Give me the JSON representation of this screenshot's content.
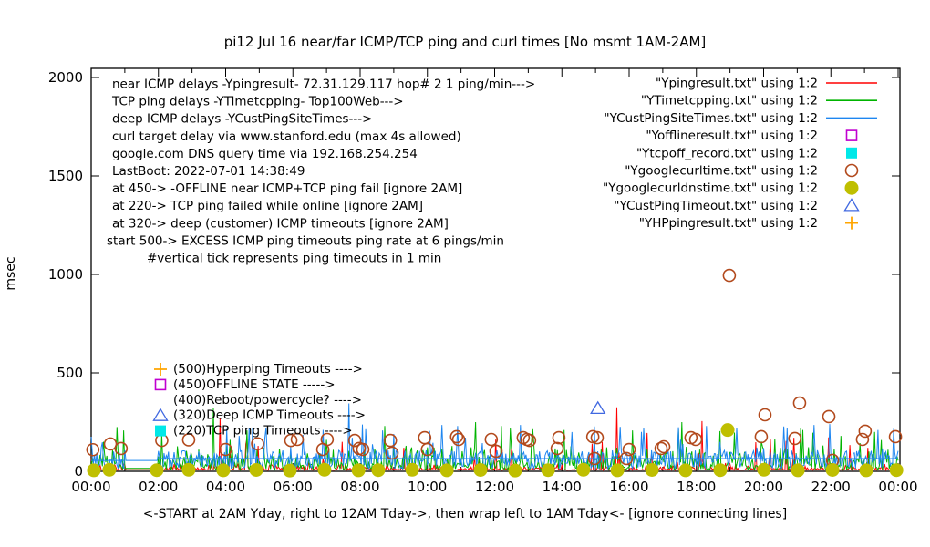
{
  "chart_data": {
    "type": "line",
    "title": "pi12 Jul 16  near/far ICMP/TCP ping and curl times [No msmt 1AM-2AM]",
    "xlabel": "<-START at 2AM Yday, right to 12AM Tday->, then wrap left to 1AM Tday<- [ignore connecting lines]",
    "ylabel": "msec",
    "ylim": [
      0,
      2000
    ],
    "y_ticks": [
      0,
      500,
      1000,
      1500,
      2000
    ],
    "x_tick_labels": [
      "00:00",
      "02:00",
      "04:00",
      "06:00",
      "08:00",
      "10:00",
      "12:00",
      "14:00",
      "16:00",
      "18:00",
      "20:00",
      "22:00",
      "00:00"
    ],
    "x_minor_every_hours": 1,
    "no_measurement_hours": [
      1,
      2
    ],
    "info_lines": [
      "near ICMP delays -Ypingresult- 72.31.129.117 hop# 2 1 ping/min--->",
      "TCP ping delays -YTimetcpping- Top100Web--->",
      "deep ICMP delays -YCustPingSiteTimes--->",
      "curl target delay via www.stanford.edu (max 4s allowed)",
      "google.com DNS query time via 192.168.254.254",
      "LastBoot: 2022-07-01 14:38:49",
      "at 450-> -OFFLINE near ICMP+TCP ping fail [ignore 2AM]",
      "at 220-> TCP ping failed while online [ignore 2AM]",
      "at 320-> deep (customer) ICMP timeouts [ignore 2AM]",
      "start 500-> EXCESS ICMP ping timeouts ping rate at 6 pings/min",
      "#vertical tick represents ping timeouts in 1 min"
    ],
    "info_indent": [
      0,
      0,
      0,
      0,
      0,
      0,
      0,
      0,
      0,
      -6,
      38
    ],
    "legend": [
      {
        "label": "\"Ypingresult.txt\" using 1:2",
        "style": "line",
        "color": "#ff0000"
      },
      {
        "label": "\"YTimetcpping.txt\" using 1:2",
        "style": "line",
        "color": "#00b400"
      },
      {
        "label": "\"YCustPingSiteTimes.txt\" using 1:2",
        "style": "line",
        "color": "#1e86f0"
      },
      {
        "label": "\"Yofflineresult.txt\" using 1:2",
        "style": "open-square",
        "color": "#c000d0"
      },
      {
        "label": "\"Ytcpoff_record.txt\" using 1:2",
        "style": "filled-square",
        "color": "#00e8e8"
      },
      {
        "label": "\"Ygooglecurltime.txt\" using 1:2",
        "style": "open-circle",
        "color": "#b2491c"
      },
      {
        "label": "\"Ygooglecurldnstime.txt\" using 1:2",
        "style": "filled-circle",
        "color": "#bfbf00"
      },
      {
        "label": "\"YCustPingTimeout.txt\" using 1:2",
        "style": "open-triangle",
        "color": "#4169e1"
      },
      {
        "label": "\"YHPpingresult.txt\" using 1:2",
        "style": "plus",
        "color": "#ffa500"
      }
    ],
    "annotations": [
      {
        "text": "(500)Hyperping Timeouts ---->",
        "marker": "plus",
        "color": "#ffa500",
        "value": 500
      },
      {
        "text": "(450)OFFLINE STATE ----->",
        "marker": "open-square",
        "color": "#c000d0",
        "value": 450
      },
      {
        "text": "(400)Reboot/powercycle? ---->",
        "marker": "none",
        "color": "#000000",
        "value": 400
      },
      {
        "text": "(320)Deep ICMP Timeouts ---->",
        "marker": "open-triangle",
        "color": "#4169e1",
        "value": 320
      },
      {
        "text": "(220)TCP ping Timeouts ---->",
        "marker": "filled-square",
        "color": "#00e8e8",
        "value": 220
      }
    ],
    "lines": [
      {
        "name": "Ypingresult.txt",
        "color": "#ff0000",
        "synth": {
          "seed": 7,
          "base": 6,
          "gap_level": 8,
          "noise": 60,
          "skew": 3,
          "spike_prob": 0.012,
          "spike_lo": 60,
          "spike_hi": 170
        },
        "major_spikes": [
          [
            3.82,
            270
          ],
          [
            9.3,
            120
          ],
          [
            12.5,
            110
          ],
          [
            14.9,
            140
          ],
          [
            15.62,
            325
          ],
          [
            16.54,
            195
          ],
          [
            18.15,
            255
          ],
          [
            19.75,
            148
          ],
          [
            20.9,
            171
          ],
          [
            21.93,
            172
          ],
          [
            22.55,
            134
          ],
          [
            23.1,
            120
          ]
        ]
      },
      {
        "name": "YTimetcpping.txt",
        "color": "#00b400",
        "synth": {
          "seed": 21,
          "base": 8,
          "gap_level": 15,
          "noise": 140,
          "skew": 2,
          "spike_prob": 0.03,
          "spike_lo": 90,
          "spike_hi": 230
        },
        "major_spikes": [
          [
            0.35,
            150
          ],
          [
            0.75,
            225
          ],
          [
            0.95,
            208
          ],
          [
            3.63,
            320
          ],
          [
            4.12,
            160
          ],
          [
            4.64,
            208
          ],
          [
            7.0,
            160
          ],
          [
            8.72,
            230
          ],
          [
            11.42,
            250
          ],
          [
            12.2,
            230
          ],
          [
            14.05,
            210
          ],
          [
            16.1,
            208
          ],
          [
            17.55,
            250
          ],
          [
            18.7,
            204
          ],
          [
            20.32,
            165
          ],
          [
            21.15,
            210
          ],
          [
            22.3,
            180
          ],
          [
            23.3,
            200
          ]
        ]
      },
      {
        "name": "YCustPingSiteTimes.txt",
        "color": "#1e86f0",
        "synth": {
          "seed": 35,
          "base": 12,
          "gap_level": 55,
          "noise": 95,
          "skew": 1,
          "spike_prob": 0.04,
          "spike_lo": 110,
          "spike_hi": 240
        },
        "flat_segments": [
          [
            0,
            1,
            55
          ],
          [
            2,
            24,
            65
          ]
        ],
        "major_spikes": [
          [
            0.3,
            122
          ],
          [
            4.4,
            180
          ],
          [
            6.3,
            185
          ],
          [
            7.67,
            345
          ],
          [
            9.0,
            190
          ],
          [
            10.9,
            230
          ],
          [
            12.75,
            235
          ],
          [
            14.95,
            228
          ],
          [
            16.35,
            200
          ],
          [
            18.3,
            230
          ],
          [
            20.6,
            228
          ],
          [
            21.5,
            235
          ],
          [
            21.97,
            240
          ],
          [
            23.4,
            210
          ]
        ]
      }
    ],
    "scatter": [
      {
        "name": "Yofflineresult.txt",
        "marker": "open-square",
        "color": "#c000d0",
        "points": []
      },
      {
        "name": "Ytcpoff_record.txt",
        "marker": "filled-square",
        "color": "#00e8e8",
        "points": []
      },
      {
        "name": "Ygooglecurltime.txt",
        "marker": "open-circle",
        "color": "#b2491c",
        "points": [
          [
            0.05,
            110
          ],
          [
            0.57,
            139
          ],
          [
            0.89,
            116
          ],
          [
            2.1,
            157
          ],
          [
            2.9,
            160
          ],
          [
            4.0,
            111
          ],
          [
            4.95,
            140
          ],
          [
            5.94,
            157
          ],
          [
            6.13,
            162
          ],
          [
            6.89,
            111
          ],
          [
            7.02,
            162
          ],
          [
            7.84,
            157
          ],
          [
            7.97,
            116
          ],
          [
            8.08,
            111
          ],
          [
            8.9,
            157
          ],
          [
            8.95,
            93
          ],
          [
            9.92,
            171
          ],
          [
            10.0,
            111
          ],
          [
            10.87,
            176
          ],
          [
            10.93,
            162
          ],
          [
            11.9,
            162
          ],
          [
            12.04,
            102
          ],
          [
            12.85,
            171
          ],
          [
            12.96,
            162
          ],
          [
            13.04,
            157
          ],
          [
            13.86,
            116
          ],
          [
            13.91,
            171
          ],
          [
            14.92,
            176
          ],
          [
            14.97,
            65
          ],
          [
            15.05,
            171
          ],
          [
            15.92,
            65
          ],
          [
            16.0,
            111
          ],
          [
            16.95,
            116
          ],
          [
            17.03,
            125
          ],
          [
            17.84,
            171
          ],
          [
            17.98,
            162
          ],
          [
            18.98,
            995
          ],
          [
            19.93,
            176
          ],
          [
            20.04,
            287
          ],
          [
            20.93,
            167
          ],
          [
            21.07,
            347
          ],
          [
            21.94,
            278
          ],
          [
            22.05,
            56
          ],
          [
            22.94,
            162
          ],
          [
            23.02,
            204
          ],
          [
            23.92,
            176
          ]
        ]
      },
      {
        "name": "Ygooglecurldnstime.txt",
        "marker": "filled-circle",
        "color": "#bfbf00",
        "points": [
          [
            0.08,
            5
          ],
          [
            0.54,
            8
          ],
          [
            1.95,
            6
          ],
          [
            2.9,
            8
          ],
          [
            3.93,
            5
          ],
          [
            4.91,
            7
          ],
          [
            5.91,
            4
          ],
          [
            6.94,
            8
          ],
          [
            7.95,
            5
          ],
          [
            8.54,
            6
          ],
          [
            9.55,
            8
          ],
          [
            10.58,
            5
          ],
          [
            11.58,
            7
          ],
          [
            12.61,
            4
          ],
          [
            13.59,
            6
          ],
          [
            14.64,
            8
          ],
          [
            15.65,
            5
          ],
          [
            16.68,
            7
          ],
          [
            17.68,
            5
          ],
          [
            18.71,
            6
          ],
          [
            18.93,
            210
          ],
          [
            20.01,
            8
          ],
          [
            21.02,
            5
          ],
          [
            22.05,
            7
          ],
          [
            23.05,
            5
          ],
          [
            23.95,
            6
          ]
        ]
      },
      {
        "name": "YCustPingTimeout.txt",
        "marker": "open-triangle",
        "color": "#4169e1",
        "points": [
          [
            15.07,
            320
          ]
        ]
      },
      {
        "name": "YHPpingresult.txt",
        "marker": "plus",
        "color": "#ffa500",
        "points": []
      }
    ]
  }
}
